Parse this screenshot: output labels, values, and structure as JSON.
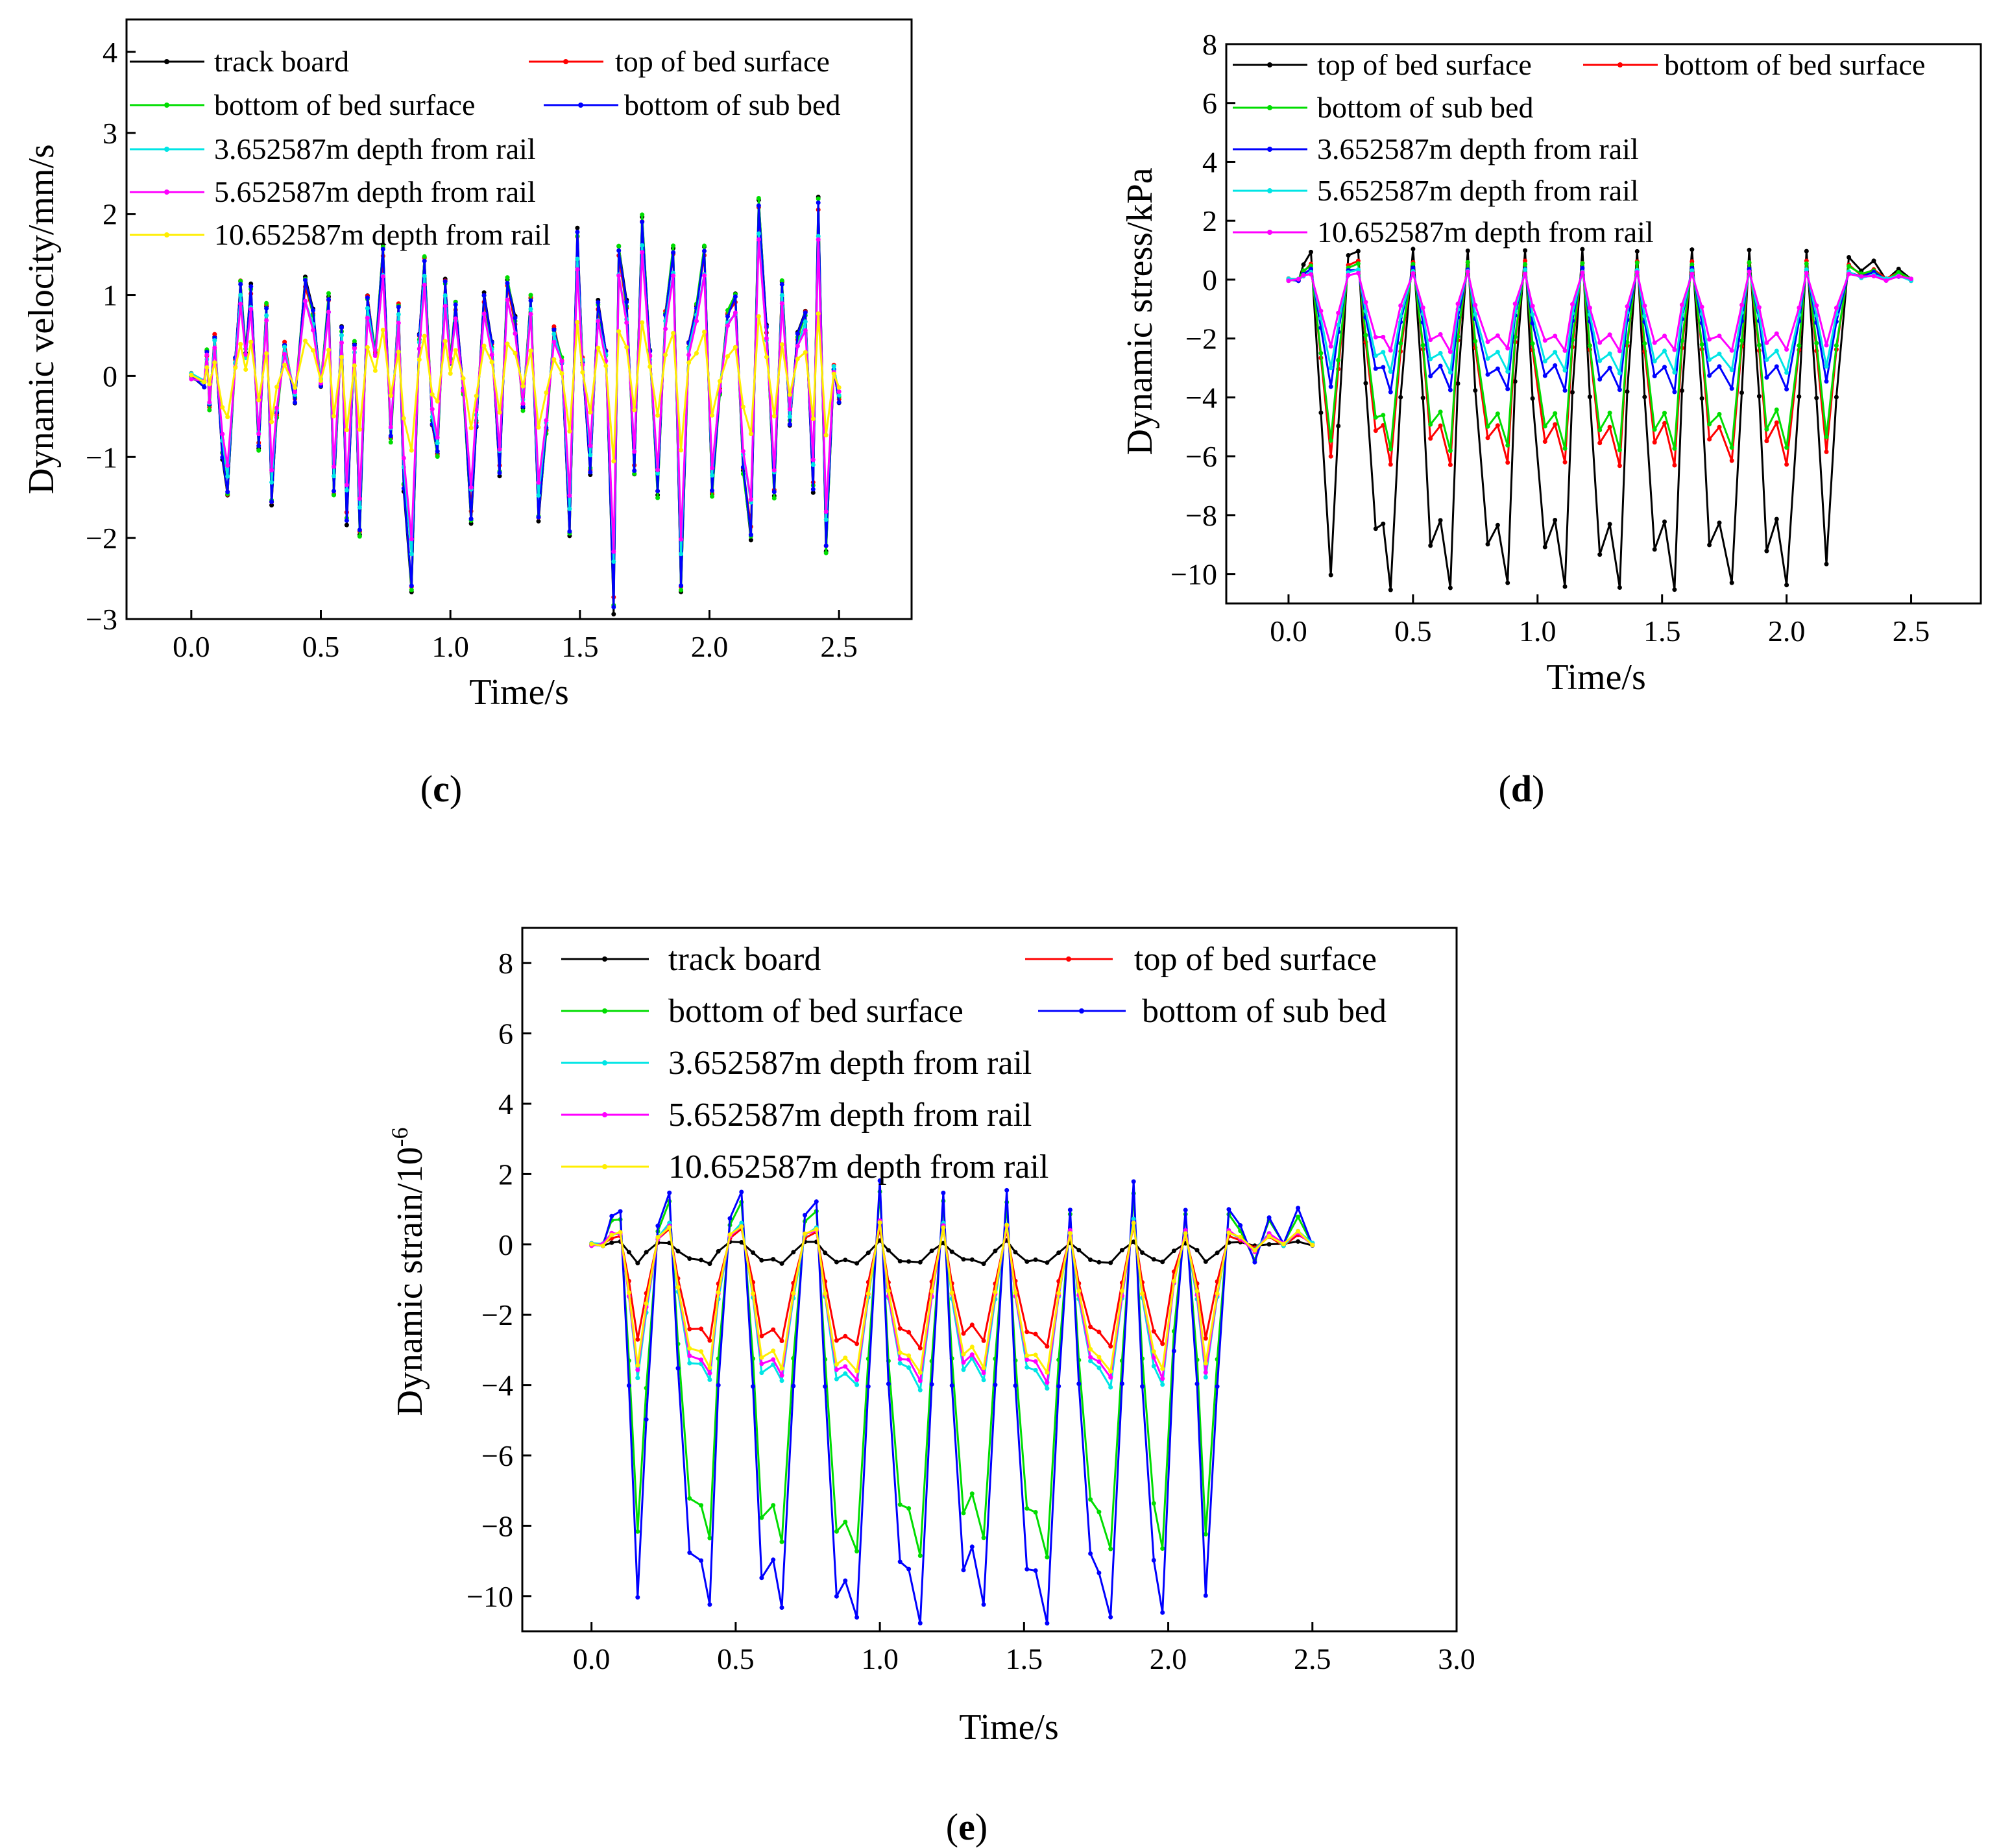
{
  "figure": {
    "panel_labels": [
      {
        "open": "(",
        "letter": "c",
        "close": ")"
      },
      {
        "open": "(",
        "letter": "d",
        "close": ")"
      },
      {
        "open": "(",
        "letter": "e",
        "close": ")"
      }
    ]
  },
  "chart_data": [
    {
      "id": "c",
      "type": "line",
      "title": "",
      "xlabel": "Time/s",
      "ylabel": "Dynamic velocity/mm/s",
      "ylabel_sup": "",
      "xlim": [
        -0.25,
        2.78
      ],
      "ylim": [
        -3,
        4.4
      ],
      "xticks": [
        0.0,
        0.5,
        1.0,
        1.5,
        2.0,
        2.5
      ],
      "xtick_labels": [
        "0.0",
        "0.5",
        "1.0",
        "1.5",
        "2.0",
        "2.5"
      ],
      "yticks": [
        -3,
        -2,
        -1,
        0,
        1,
        2,
        3,
        4
      ],
      "ytick_labels": [
        "−3",
        "−2",
        "−1",
        "0",
        "1",
        "2",
        "3",
        "4"
      ],
      "legend_position": "top",
      "series": [
        {
          "name": "track board",
          "color": "#000000",
          "amp": 1.0
        },
        {
          "name": "top of bed surface",
          "color": "#ff0000",
          "amp": 0.95
        },
        {
          "name": "bottom of bed surface",
          "color": "#00dd00",
          "amp": 0.98
        },
        {
          "name": "bottom of sub bed",
          "color": "#0000ff",
          "amp": 0.97
        },
        {
          "name": "3.652587m depth from rail",
          "color": "#00e5e5",
          "amp": 0.8
        },
        {
          "name": "5.652587m depth from rail",
          "color": "#ff00ff",
          "amp": 0.75
        },
        {
          "name": "10.652587m depth from rail",
          "color": "#ffee00",
          "amp": 0.35
        }
      ],
      "x": [
        0.0,
        0.05,
        0.06,
        0.07,
        0.09,
        0.12,
        0.14,
        0.17,
        0.19,
        0.21,
        0.23,
        0.26,
        0.29,
        0.31,
        0.33,
        0.36,
        0.4,
        0.44,
        0.47,
        0.5,
        0.53,
        0.55,
        0.58,
        0.6,
        0.63,
        0.65,
        0.68,
        0.71,
        0.74,
        0.77,
        0.8,
        0.82,
        0.85,
        0.88,
        0.9,
        0.93,
        0.95,
        0.98,
        1.0,
        1.02,
        1.05,
        1.08,
        1.1,
        1.13,
        1.16,
        1.19,
        1.22,
        1.25,
        1.28,
        1.31,
        1.34,
        1.37,
        1.4,
        1.43,
        1.46,
        1.49,
        1.51,
        1.54,
        1.57,
        1.6,
        1.63,
        1.65,
        1.68,
        1.71,
        1.74,
        1.77,
        1.8,
        1.83,
        1.86,
        1.89,
        1.92,
        1.95,
        1.98,
        2.01,
        2.04,
        2.07,
        2.1,
        2.13,
        2.16,
        2.19,
        2.22,
        2.25,
        2.28,
        2.31,
        2.34,
        2.37,
        2.4,
        2.42,
        2.45,
        2.48,
        2.5
      ],
      "y": [
        0.0,
        -0.1,
        0.3,
        -0.4,
        0.5,
        -1.0,
        -1.5,
        0.2,
        1.2,
        0.3,
        1.1,
        -0.9,
        0.9,
        -1.6,
        -0.5,
        0.4,
        -0.3,
        1.2,
        0.8,
        -0.1,
        1.0,
        -1.5,
        0.6,
        -1.8,
        0.4,
        -2.0,
        1.0,
        0.3,
        1.6,
        -0.8,
        0.9,
        -1.4,
        -2.7,
        0.5,
        1.5,
        -0.6,
        -1.0,
        1.2,
        0.2,
        0.9,
        -0.2,
        -1.8,
        -0.6,
        1.0,
        0.4,
        -1.2,
        1.2,
        0.7,
        -0.4,
        1.0,
        -1.8,
        -0.7,
        0.6,
        0.2,
        -2.0,
        1.8,
        0.2,
        -1.2,
        0.9,
        0.3,
        -2.9,
        1.6,
        0.9,
        -1.2,
        2.0,
        0.3,
        -1.5,
        0.8,
        1.6,
        -2.7,
        0.4,
        0.9,
        1.6,
        -1.5,
        -0.2,
        0.8,
        1.0,
        -1.2,
        -2.0,
        2.2,
        0.6,
        -1.5,
        1.2,
        -0.6,
        0.5,
        0.8,
        -1.4,
        2.2,
        -2.2,
        0.1,
        -0.3
      ]
    },
    {
      "id": "d",
      "type": "line",
      "title": "",
      "xlabel": "Time/s",
      "ylabel": "Dynamic stress/kPa",
      "ylabel_sup": "",
      "xlim": [
        -0.25,
        2.78
      ],
      "ylim": [
        -11,
        8
      ],
      "xticks": [
        0.0,
        0.5,
        1.0,
        1.5,
        2.0,
        2.5
      ],
      "xtick_labels": [
        "0.0",
        "0.5",
        "1.0",
        "1.5",
        "2.0",
        "2.5"
      ],
      "yticks": [
        -10,
        -8,
        -6,
        -4,
        -2,
        0,
        2,
        4,
        6,
        8
      ],
      "ytick_labels": [
        "−10",
        "−8",
        "−6",
        "−4",
        "−2",
        "0",
        "2",
        "4",
        "6",
        "8"
      ],
      "legend_position": "top",
      "series": [
        {
          "name": "top of bed surface",
          "color": "#000000",
          "amp": 1.0
        },
        {
          "name": "bottom of bed surface",
          "color": "#ff0000",
          "amp": 0.6
        },
        {
          "name": "bottom of sub bed",
          "color": "#00dd00",
          "amp": 0.55
        },
        {
          "name": "3.652587m depth from rail",
          "color": "#0000ff",
          "amp": 0.36
        },
        {
          "name": "5.652587m depth from rail",
          "color": "#00e5e5",
          "amp": 0.3
        },
        {
          "name": "10.652587m depth from rail",
          "color": "#ff00ff",
          "amp": 0.23
        }
      ],
      "x": [
        0.0,
        0.04,
        0.06,
        0.09,
        0.13,
        0.17,
        0.2,
        0.24,
        0.28,
        0.31,
        0.35,
        0.38,
        0.41,
        0.45,
        0.5,
        0.54,
        0.57,
        0.61,
        0.65,
        0.68,
        0.72,
        0.75,
        0.8,
        0.84,
        0.88,
        0.91,
        0.95,
        0.98,
        1.03,
        1.07,
        1.11,
        1.14,
        1.18,
        1.21,
        1.25,
        1.29,
        1.33,
        1.36,
        1.4,
        1.43,
        1.47,
        1.51,
        1.55,
        1.58,
        1.62,
        1.66,
        1.69,
        1.73,
        1.78,
        1.82,
        1.85,
        1.89,
        1.92,
        1.96,
        2.0,
        2.05,
        2.08,
        2.12,
        2.16,
        2.2,
        2.25,
        2.3,
        2.35,
        2.4,
        2.45,
        2.5
      ],
      "y": [
        0.0,
        0.0,
        0.5,
        0.9,
        -4.5,
        -10.0,
        -5.0,
        0.8,
        1.0,
        -3.5,
        -8.5,
        -8.3,
        -10.5,
        -4.0,
        1.0,
        -4.0,
        -9.0,
        -8.2,
        -10.5,
        -3.5,
        1.0,
        -3.8,
        -9.0,
        -8.3,
        -10.3,
        -3.5,
        1.0,
        -4.0,
        -9.1,
        -8.2,
        -10.4,
        -3.8,
        1.0,
        -4.0,
        -9.3,
        -8.3,
        -10.5,
        -3.8,
        1.0,
        -4.0,
        -9.2,
        -8.2,
        -10.5,
        -3.8,
        1.0,
        -4.0,
        -9.0,
        -8.3,
        -10.3,
        -3.8,
        1.0,
        -4.0,
        -9.2,
        -8.1,
        -10.4,
        -4.0,
        1.0,
        -4.0,
        -9.7,
        -4.0,
        0.8,
        0.3,
        0.6,
        0.0,
        0.4,
        0.0
      ]
    },
    {
      "id": "e",
      "type": "line",
      "title": "",
      "xlabel": "Time/s",
      "ylabel": "Dynamic strain/10",
      "ylabel_sup": "-6",
      "xlim": [
        -0.24,
        3.0
      ],
      "ylim": [
        -11,
        9
      ],
      "xticks": [
        0.0,
        0.5,
        1.0,
        1.5,
        2.0,
        2.5,
        3.0
      ],
      "xtick_labels": [
        "0.0",
        "0.5",
        "1.0",
        "1.5",
        "2.0",
        "2.5",
        "3.0"
      ],
      "yticks": [
        -10,
        -8,
        -6,
        -4,
        -2,
        0,
        2,
        4,
        6,
        8
      ],
      "ytick_labels": [
        "−10",
        "−8",
        "−6",
        "−4",
        "−2",
        "0",
        "2",
        "4",
        "6",
        "8"
      ],
      "legend_position": "top",
      "series": [
        {
          "name": "track board",
          "color": "#000000",
          "amp": 0.05
        },
        {
          "name": "top of bed surface",
          "color": "#ff0000",
          "amp": 0.27
        },
        {
          "name": "bottom of bed surface",
          "color": "#00dd00",
          "amp": 0.82
        },
        {
          "name": "bottom of sub bed",
          "color": "#0000ff",
          "amp": 1.0
        },
        {
          "name": "3.652587m depth from rail",
          "color": "#00e5e5",
          "amp": 0.38
        },
        {
          "name": "5.652587m depth from rail",
          "color": "#ff00ff",
          "amp": 0.36
        },
        {
          "name": "10.652587m depth from rail",
          "color": "#ffee00",
          "amp": 0.34
        }
      ],
      "x": [
        0.0,
        0.04,
        0.07,
        0.1,
        0.13,
        0.16,
        0.19,
        0.23,
        0.27,
        0.3,
        0.34,
        0.38,
        0.41,
        0.44,
        0.48,
        0.52,
        0.56,
        0.59,
        0.63,
        0.66,
        0.7,
        0.74,
        0.78,
        0.81,
        0.85,
        0.88,
        0.92,
        0.96,
        1.0,
        1.03,
        1.07,
        1.1,
        1.14,
        1.18,
        1.22,
        1.25,
        1.29,
        1.32,
        1.36,
        1.4,
        1.44,
        1.47,
        1.51,
        1.54,
        1.58,
        1.62,
        1.66,
        1.69,
        1.73,
        1.76,
        1.8,
        1.84,
        1.88,
        1.91,
        1.95,
        1.98,
        2.02,
        2.06,
        2.1,
        2.13,
        2.17,
        2.21,
        2.25,
        2.3,
        2.35,
        2.4,
        2.45,
        2.5
      ],
      "y": [
        0.0,
        0.0,
        0.8,
        0.9,
        -4.0,
        -10.0,
        -5.0,
        0.5,
        1.5,
        -3.5,
        -8.8,
        -9.0,
        -10.2,
        -4.0,
        0.7,
        1.5,
        -4.0,
        -9.5,
        -9.0,
        -10.3,
        -4.0,
        0.8,
        1.2,
        -4.0,
        -10.0,
        -9.6,
        -10.6,
        -4.0,
        1.8,
        -4.0,
        -9.0,
        -9.2,
        -10.8,
        -4.0,
        1.5,
        -4.0,
        -9.3,
        -8.6,
        -10.2,
        -4.0,
        1.5,
        -4.0,
        -9.2,
        -9.3,
        -10.8,
        -4.0,
        1.0,
        -4.0,
        -8.8,
        -9.3,
        -10.6,
        -4.0,
        1.8,
        -4.0,
        -9.0,
        -10.5,
        -3.0,
        1.0,
        -4.0,
        -10.0,
        -4.0,
        1.0,
        0.5,
        -0.5,
        0.8,
        0.0,
        1.0,
        0.0
      ]
    }
  ]
}
